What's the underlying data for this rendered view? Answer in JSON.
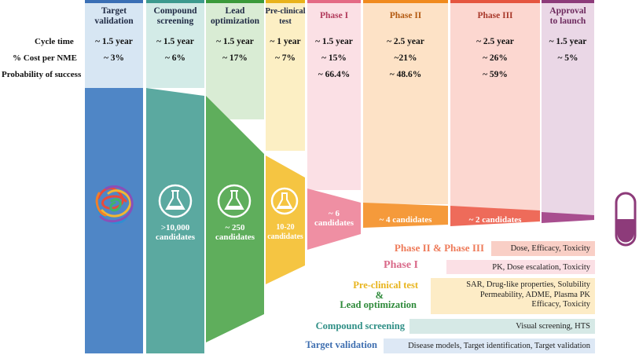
{
  "stages": [
    {
      "name": "Target\nvalidation",
      "color": "#4f86c6",
      "light": "#d7e6f3",
      "top_bar": "#3a6fb5"
    },
    {
      "name": "Compound\nscreening",
      "color": "#5ba9a0",
      "light": "#d3ebe7",
      "top_bar": "#3c9a8e"
    },
    {
      "name": "Lead\noptimization",
      "color": "#5fae5c",
      "light": "#d9ecd4",
      "top_bar": "#3a9a3a"
    },
    {
      "name": "Pre-clinical\ntest",
      "color": "#f5c542",
      "light": "#fcefc4",
      "top_bar": "#e9b21a"
    },
    {
      "name": "Phase I",
      "color": "#ef8fa3",
      "light": "#fbe0e5",
      "top_bar": "#e46a85"
    },
    {
      "name": "Phase II",
      "color": "#f59a3b",
      "light": "#fde2c6",
      "top_bar": "#f08a1d"
    },
    {
      "name": "Phase III",
      "color": "#ee6b5a",
      "light": "#fcd7d0",
      "top_bar": "#e5553f"
    },
    {
      "name": "Approval\nto launch",
      "color": "#a84e8f",
      "light": "#ead7e6",
      "top_bar": "#8d3b7a"
    }
  ],
  "row_labels": {
    "cycle_time": "Cycle time",
    "cost": "% Cost per NME",
    "probability": "Probability of success"
  },
  "cycle_time": [
    "~ 1.5 year",
    "~ 1.5 year",
    "~ 1.5 year",
    "~ 1 year",
    "~ 1.5 year",
    "~ 2.5 year",
    "~ 2.5 year",
    "~ 1.5 year"
  ],
  "cost": [
    "~ 3%",
    "~ 6%",
    "~ 17%",
    "~ 7%",
    "~ 15%",
    "~21%",
    "~ 26%",
    "~ 5%"
  ],
  "probability": [
    "",
    "",
    "",
    "",
    "~ 66.4%",
    "~ 48.6%",
    "~ 59%",
    ""
  ],
  "candidates": [
    "",
    ">10,000\ncandidates",
    "~ 250\ncandidates",
    "10-20\ncandidates",
    "~ 6\ncandidates",
    "~ 4 candidates",
    "~ 2 candidates",
    ""
  ],
  "legend": [
    {
      "title": "Phase II & Phase III",
      "desc": "Dose, Efficacy, Toxicity",
      "title_color": "#ee7b5a",
      "box_color": "#f9cfc6"
    },
    {
      "title": "Phase I",
      "desc": "PK, Dose escalation, Toxicity",
      "title_color": "#d96a8a",
      "box_color": "#fbe0e5"
    },
    {
      "title": "Pre-clinical test",
      "desc": "SAR, Drug-like properties, Solubility\nPermeability, ADME, Plasma PK\nEfficacy, Toxicity",
      "title_color": "#e8b41c",
      "box_color": "#fdecc6"
    },
    {
      "title": "&",
      "desc": "",
      "title_color": "#e8b41c",
      "box_color": ""
    },
    {
      "title": "Lead optimization",
      "desc": "",
      "title_color": "#2e8a3a",
      "box_color": ""
    },
    {
      "title": "Compound screening",
      "desc": "Visual screening, HTS",
      "title_color": "#2f8f86",
      "box_color": "#d6e9e6"
    },
    {
      "title": "Target validation",
      "desc": "Disease models, Target identification, Target validation",
      "title_color": "#3f6fb0",
      "box_color": "#dde8f5"
    }
  ],
  "icons": {
    "target": "protein-structure-icon",
    "flask": "flask-icon",
    "capsule": "capsule-icon"
  }
}
